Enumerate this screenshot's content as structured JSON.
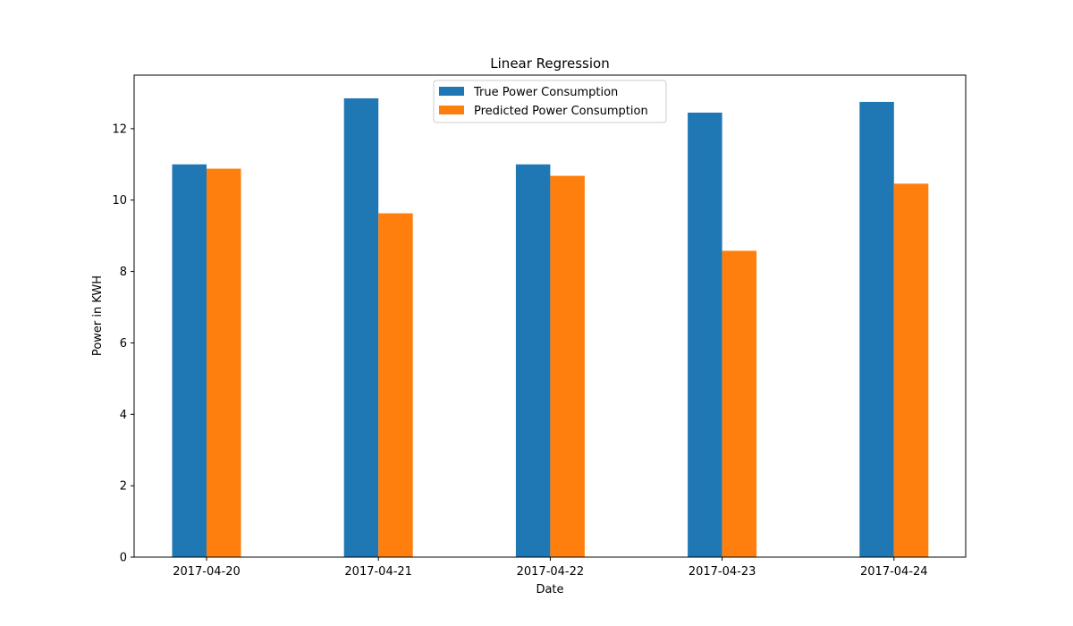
{
  "chart_data": {
    "type": "bar",
    "title": "Linear Regression",
    "xlabel": "Date",
    "ylabel": "Power in KWH",
    "categories": [
      "2017-04-20",
      "2017-04-21",
      "2017-04-22",
      "2017-04-23",
      "2017-04-24"
    ],
    "series": [
      {
        "name": "True Power Consumption",
        "color": "#1f77b4",
        "values": [
          11.0,
          12.85,
          11.0,
          12.45,
          12.75
        ]
      },
      {
        "name": "Predicted Power Consumption",
        "color": "#ff7f0e",
        "values": [
          10.88,
          9.63,
          10.68,
          8.58,
          10.46
        ]
      }
    ],
    "ylim": [
      0,
      13.5
    ],
    "yticks": [
      0,
      2,
      4,
      6,
      8,
      10,
      12
    ],
    "grid": false,
    "legend_position": "top-center"
  }
}
